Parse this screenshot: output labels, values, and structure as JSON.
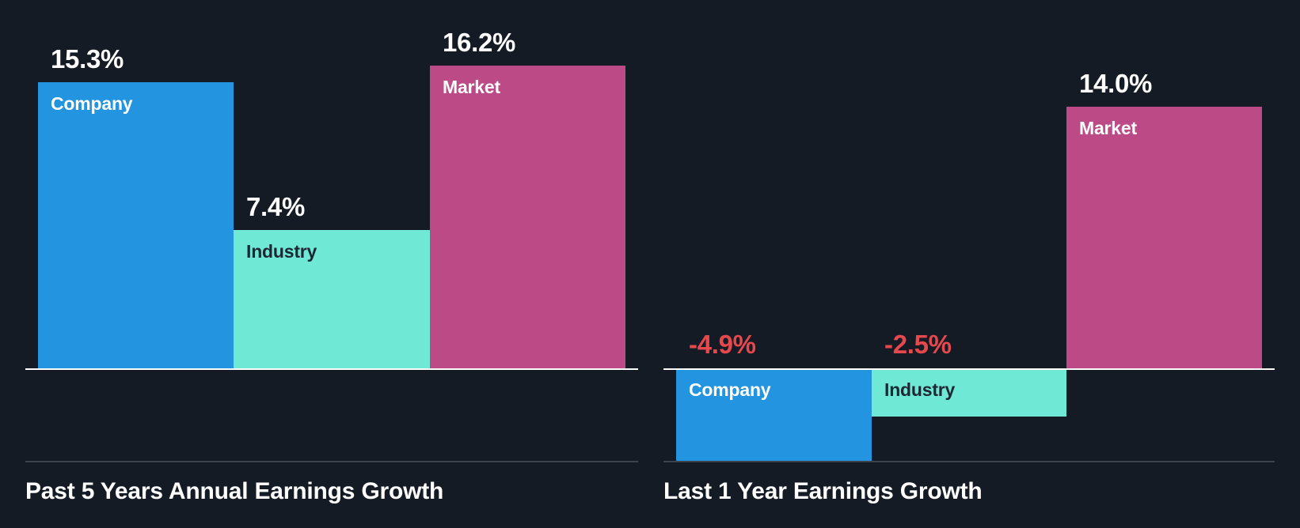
{
  "colors": {
    "background": "#151b24",
    "company": "#2394df",
    "industry": "#6fe8d6",
    "market": "#bb4a86",
    "positive_text": "#ffffff",
    "negative_text": "#e5484d",
    "label_dark": "#1d2633",
    "label_light": "#ffffff"
  },
  "chart_data": [
    {
      "type": "bar",
      "title": "Past 5 Years Annual Earnings Growth",
      "categories": [
        "Company",
        "Industry",
        "Market"
      ],
      "values": [
        15.3,
        7.4,
        16.2
      ],
      "value_labels": [
        "15.3%",
        "7.4%",
        "16.2%"
      ],
      "unit": "%",
      "xlabel": "",
      "ylabel": "",
      "grid": false,
      "legend": "none (labels inside bars)"
    },
    {
      "type": "bar",
      "title": "Last 1 Year Earnings Growth",
      "categories": [
        "Company",
        "Industry",
        "Market"
      ],
      "values": [
        -4.9,
        -2.5,
        14.0
      ],
      "value_labels": [
        "-4.9%",
        "-2.5%",
        "14.0%"
      ],
      "unit": "%",
      "xlabel": "",
      "ylabel": "",
      "grid": false,
      "legend": "none (labels inside bars)"
    }
  ]
}
